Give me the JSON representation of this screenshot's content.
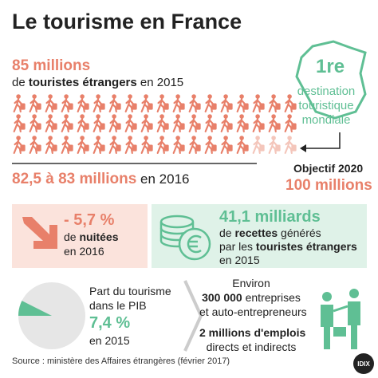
{
  "title": "Le tourisme en France",
  "tourists_2015": {
    "figure": "85 millions",
    "prefix": "de ",
    "bold": "touristes étrangers",
    "suffix": " en 2015"
  },
  "tourists_2016": {
    "figure": "82,5 à 83 millions",
    "suffix": " en 2016"
  },
  "ranking": {
    "rank": "1re",
    "lines": [
      "destination",
      "touristique",
      "mondiale"
    ]
  },
  "goal": {
    "label": "Objectif 2020",
    "figure": "100 millions"
  },
  "nights": {
    "figure": "- 5,7 %",
    "prefix": "de ",
    "bold": "nuitées",
    "suffix": "en 2016"
  },
  "revenue": {
    "figure": "41,1 milliards",
    "line1_prefix": "de ",
    "line1_bold": "recettes",
    "line1_suffix": " générés",
    "line2_prefix": "par les ",
    "line2_bold": "touristes étrangers",
    "line3": "en 2015"
  },
  "gdp": {
    "lines": [
      "Part du tourisme",
      "dans le PIB"
    ],
    "share": {
      "value": 7.4,
      "label": "7,4 %"
    },
    "year": "en 2015"
  },
  "jobs": {
    "intro": "Environ",
    "companies_bold": "300 000",
    "companies_suffix": " entreprises",
    "companies_line2": "et auto-entrepreneurs",
    "jobs_bold": "2 millions d'emplois",
    "jobs_line2": "directs et indirects"
  },
  "source": "Source : ministère des Affaires étrangères (février 2017)",
  "logo": "IDIX"
}
